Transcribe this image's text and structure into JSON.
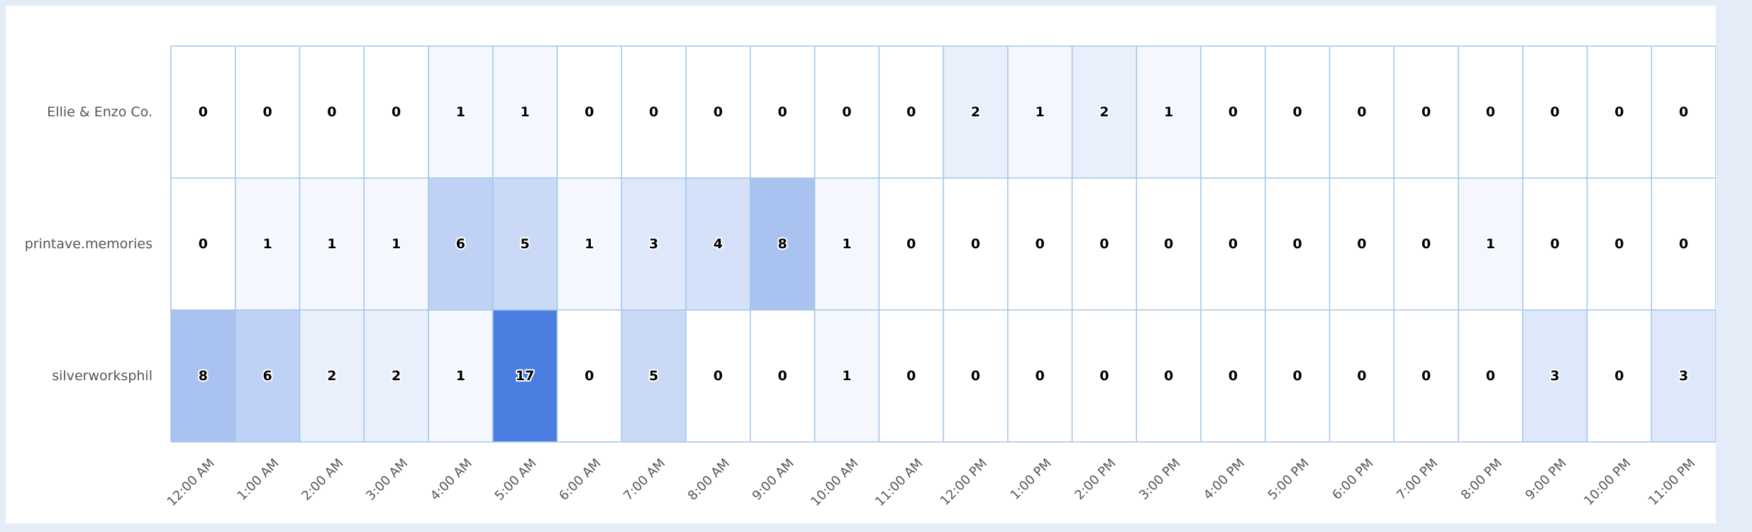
{
  "chart_data": {
    "type": "heatmap",
    "title": "",
    "xlabel": "",
    "ylabel": "",
    "columns": [
      "12:00 AM",
      "1:00 AM",
      "2:00 AM",
      "3:00 AM",
      "4:00 AM",
      "5:00 AM",
      "6:00 AM",
      "7:00 AM",
      "8:00 AM",
      "9:00 AM",
      "10:00 AM",
      "11:00 AM",
      "12:00 PM",
      "1:00 PM",
      "2:00 PM",
      "3:00 PM",
      "4:00 PM",
      "5:00 PM",
      "6:00 PM",
      "7:00 PM",
      "8:00 PM",
      "9:00 PM",
      "10:00 PM",
      "11:00 PM"
    ],
    "rows": [
      "Ellie & Enzo Co.",
      "printave.memories",
      "silverworksphil"
    ],
    "values": [
      [
        0,
        0,
        0,
        0,
        1,
        1,
        0,
        0,
        0,
        0,
        0,
        0,
        2,
        1,
        2,
        1,
        0,
        0,
        0,
        0,
        0,
        0,
        0,
        0
      ],
      [
        0,
        1,
        1,
        1,
        6,
        5,
        1,
        3,
        4,
        8,
        1,
        0,
        0,
        0,
        0,
        0,
        0,
        0,
        0,
        0,
        1,
        0,
        0,
        0
      ],
      [
        8,
        6,
        2,
        2,
        1,
        17,
        0,
        5,
        0,
        0,
        1,
        0,
        0,
        0,
        0,
        0,
        0,
        0,
        0,
        0,
        0,
        3,
        0,
        3
      ]
    ],
    "color_scale": {
      "min": 0,
      "max": 17,
      "min_color": "#ffffff",
      "max_color": "#4a7ee0"
    },
    "grid_color": "#a4c6ea",
    "legend": "none"
  }
}
